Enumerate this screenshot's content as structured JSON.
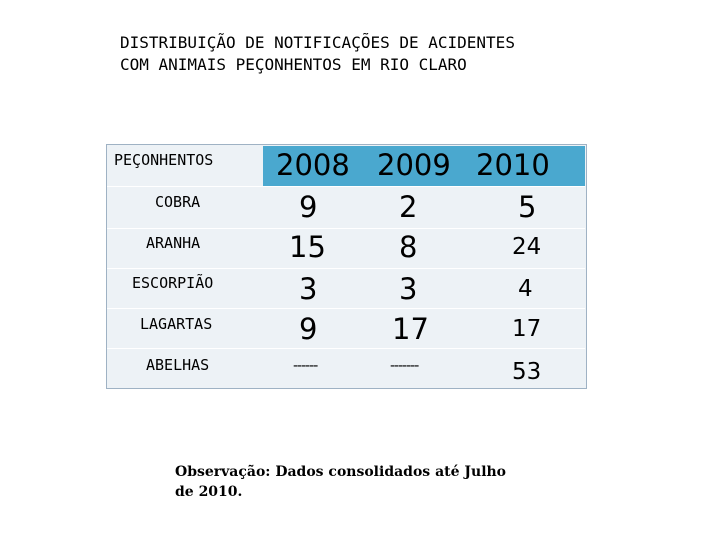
{
  "title": {
    "line1": "DISTRIBUIÇÃO DE NOTIFICAÇÕES DE ACIDENTES",
    "line2": "COM ANIMAIS PEÇONHENTOS EM RIO CLARO"
  },
  "table": {
    "header": {
      "label": "PEÇONHENTOS",
      "years": [
        "2008",
        "2009",
        "2010"
      ]
    },
    "rows": [
      {
        "label": "COBRA",
        "values": [
          "9",
          "2",
          "5"
        ]
      },
      {
        "label": "ARANHA",
        "values": [
          "15",
          "8",
          "24"
        ]
      },
      {
        "label": "ESCORPIÃO",
        "values": [
          "3",
          "3",
          "4"
        ]
      },
      {
        "label": "LAGARTAS",
        "values": [
          "9",
          "17",
          "17"
        ]
      },
      {
        "label": "ABELHAS",
        "values": [
          "------",
          "-------",
          "53"
        ]
      }
    ]
  },
  "note": "Observação: Dados consolidados até Julho de 2010.",
  "colors": {
    "header_band": "#4aa8cf",
    "table_background": "#edf2f6"
  }
}
